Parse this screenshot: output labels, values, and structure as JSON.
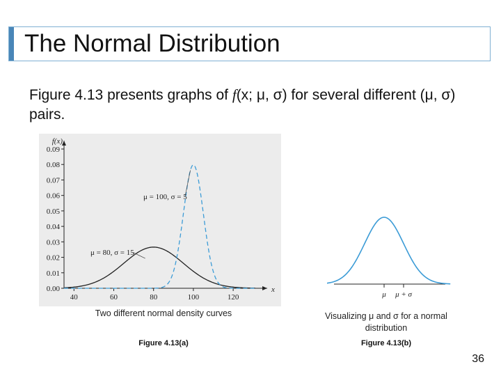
{
  "slide": {
    "title": "The Normal Distribution",
    "intro_prefix": "Figure 4.13 presents graphs of ",
    "intro_fx": "f",
    "intro_args": "(x; μ, σ)",
    "intro_suffix": " for several different (μ, σ) pairs.",
    "page_number": "36"
  },
  "left_figure": {
    "caption": "Two different normal density curves",
    "label": "Figure 4.13(a)"
  },
  "right_figure": {
    "caption": "Visualizing μ and σ for a normal distribution",
    "label": "Figure 4.13(b)"
  },
  "chart_data": [
    {
      "type": "line",
      "ylabel": "f(x)",
      "xlabel": "x",
      "x_ticks": [
        40,
        60,
        80,
        100,
        120
      ],
      "xlim": [
        35,
        135
      ],
      "y_ticks": [
        "0.00",
        "0.01",
        "0.02",
        "0.03",
        "0.04",
        "0.05",
        "0.06",
        "0.07",
        "0.08",
        "0.09"
      ],
      "ylim": [
        0,
        0.09
      ],
      "grid": false,
      "background": "#ececec",
      "series": [
        {
          "annotation": "μ = 80, σ = 15",
          "mean": 80,
          "sd": 15,
          "style": "solid",
          "color": "#222222"
        },
        {
          "annotation": "μ = 100, σ = 5",
          "mean": 100,
          "sd": 5,
          "style": "dashed",
          "color": "#3b9bd6"
        }
      ]
    },
    {
      "type": "line",
      "x_ticks": [
        "μ",
        "μ + σ"
      ],
      "mean": 0,
      "sd": 1,
      "style": "solid",
      "color": "#3b9bd6",
      "grid": false
    }
  ]
}
